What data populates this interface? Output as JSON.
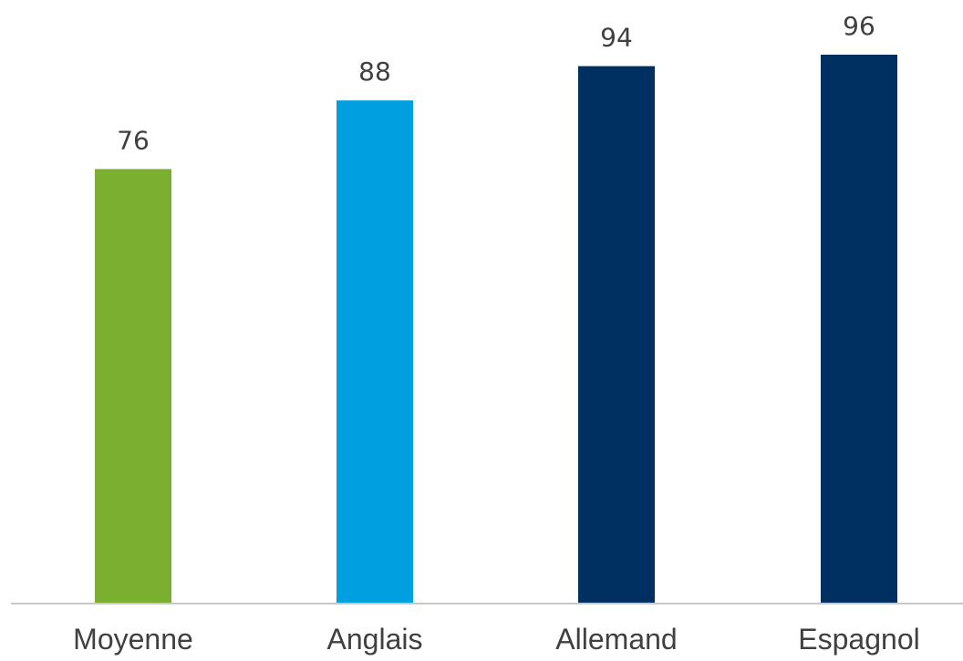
{
  "chart_data": {
    "type": "bar",
    "categories": [
      "Moyenne",
      "Anglais",
      "Allemand",
      "Espagnol"
    ],
    "values": [
      76,
      88,
      94,
      96
    ],
    "colors": [
      "#7aaf30",
      "#009fe0",
      "#002f62",
      "#002f62"
    ],
    "axis_color": "#c8c8c8",
    "label_color": "#404040",
    "ylim": [
      0,
      96
    ],
    "grid": false,
    "legend": "none"
  }
}
